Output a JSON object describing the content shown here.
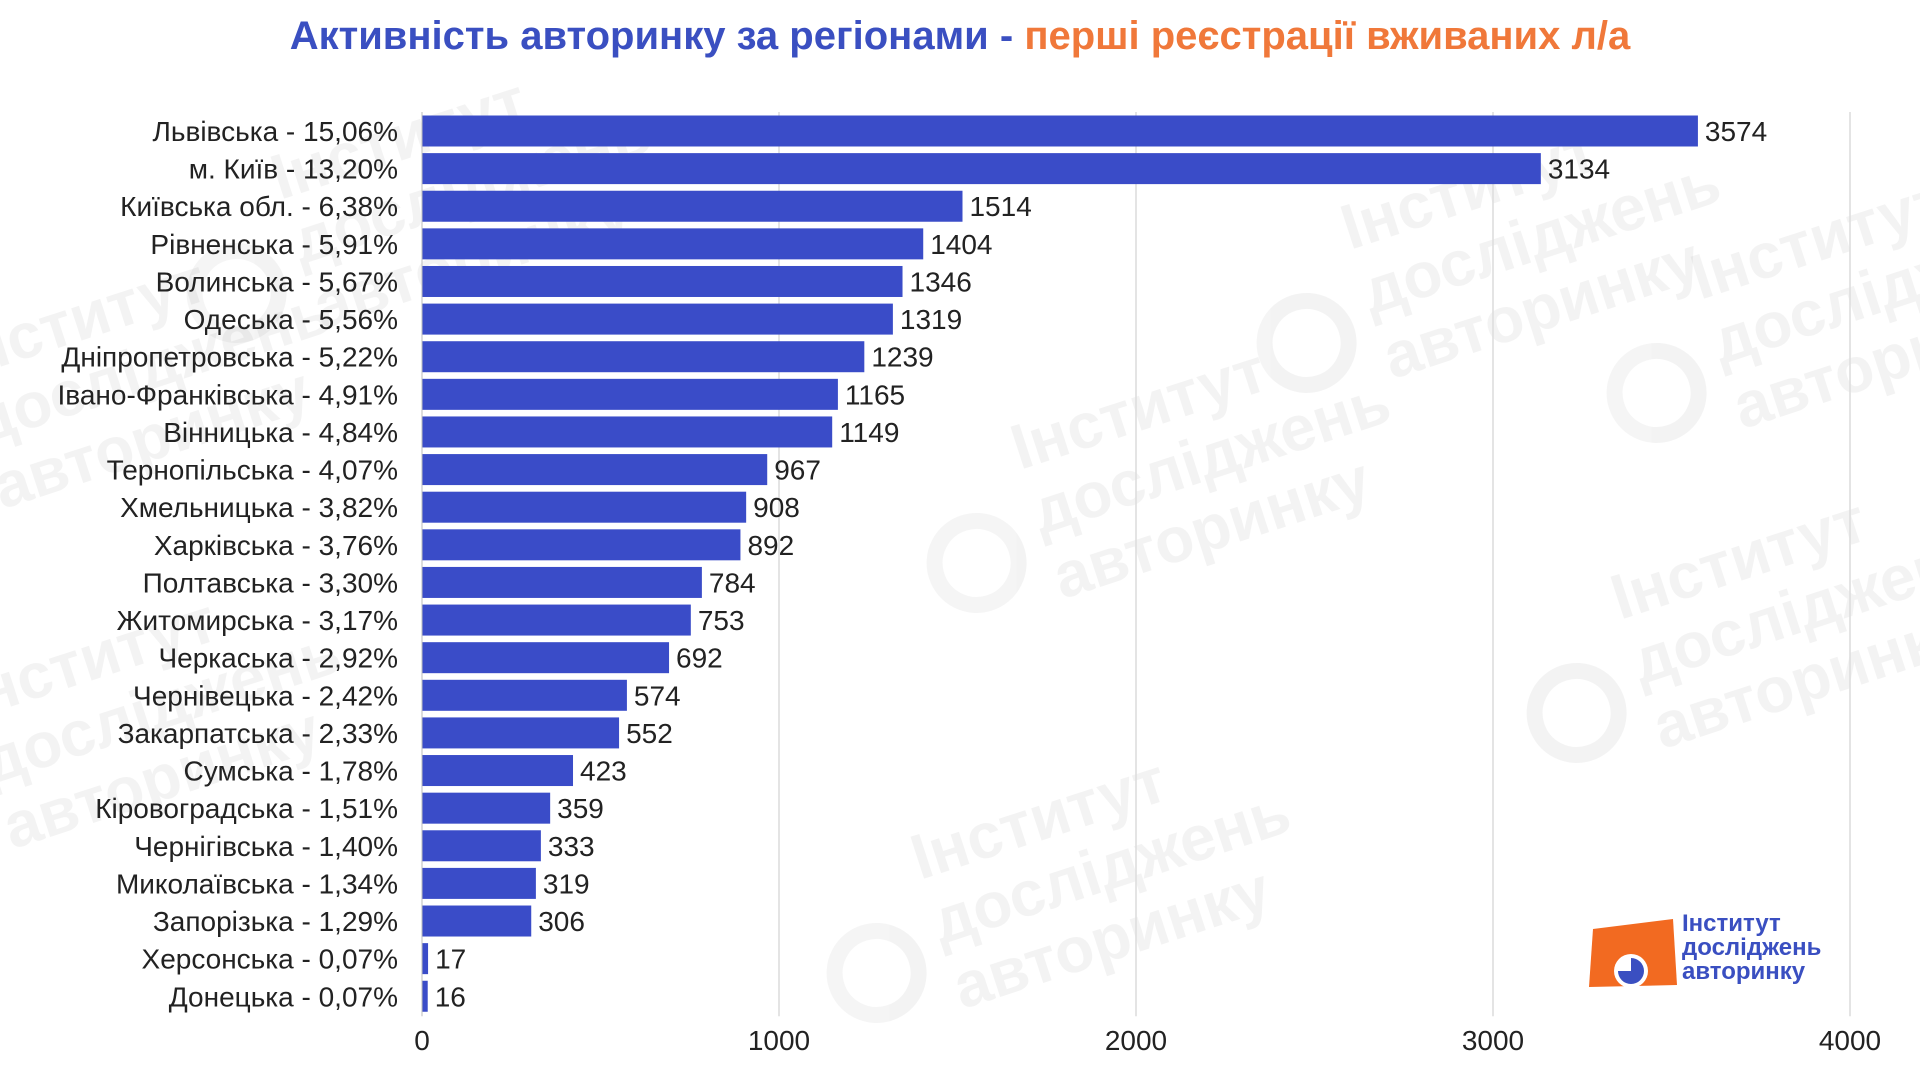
{
  "title": {
    "part1": "Активність авторинку за регіонами",
    "separator": " - ",
    "part2": "перші реєстрації вживаних л/а"
  },
  "colors": {
    "bar": "#3a4cc8",
    "title_main": "#3a4fc1",
    "title_accent": "#f0783a",
    "grid": "#dcdcdc",
    "logo_orange": "#f26a21",
    "logo_blue": "#3a4fc1"
  },
  "logo": {
    "line1": "Інститут",
    "line2": "досліджень",
    "line3": "авторинку",
    "icon": "pie-chart-icon"
  },
  "watermark": {
    "lines": [
      "Інститут",
      "досліджень",
      "авторинку"
    ]
  },
  "chart_data": {
    "type": "bar",
    "orientation": "horizontal",
    "categories": [
      "Львівська - 15,06%",
      "м. Київ - 13,20%",
      "Київська обл. - 6,38%",
      "Рівненська - 5,91%",
      "Волинська - 5,67%",
      "Одеська - 5,56%",
      "Дніпропетровська - 5,22%",
      "Івано-Франківська - 4,91%",
      "Вінницька - 4,84%",
      "Тернопільська - 4,07%",
      "Хмельницька - 3,82%",
      "Харківська - 3,76%",
      "Полтавська - 3,30%",
      "Житомирська - 3,17%",
      "Черкаська - 2,92%",
      "Чернівецька - 2,42%",
      "Закарпатська - 2,33%",
      "Сумська - 1,78%",
      "Кіровоградська - 1,51%",
      "Чернігівська - 1,40%",
      "Миколаївська - 1,34%",
      "Запорізька - 1,29%",
      "Херсонська - 0,07%",
      "Донецька - 0,07%"
    ],
    "values": [
      3574,
      3134,
      1514,
      1404,
      1346,
      1319,
      1239,
      1165,
      1149,
      967,
      908,
      892,
      784,
      753,
      692,
      574,
      552,
      423,
      359,
      333,
      319,
      306,
      17,
      16
    ],
    "xlim": [
      0,
      4000
    ],
    "xticks": [
      0,
      1000,
      2000,
      3000,
      4000
    ],
    "grid": true,
    "data_labels": true,
    "xlabel": "",
    "ylabel": ""
  }
}
